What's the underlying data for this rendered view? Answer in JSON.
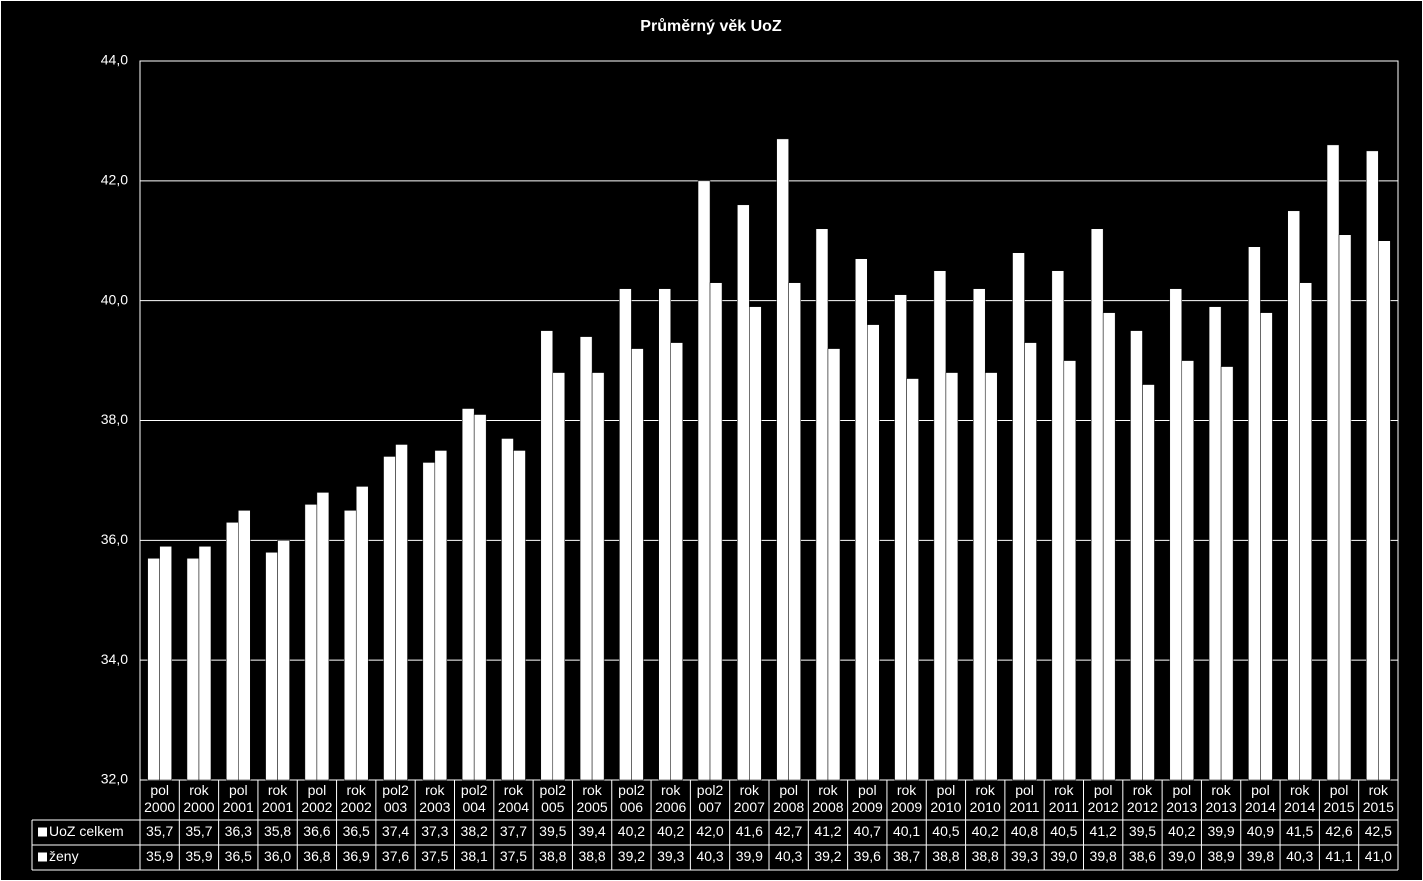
{
  "chart_data": {
    "type": "bar",
    "title": "Průměrný věk UoZ",
    "categories": [
      "pol 2000",
      "rok 2000",
      "pol 2001",
      "rok 2001",
      "pol 2002",
      "rok 2002",
      "pol2003",
      "rok 2003",
      "pol2004",
      "rok 2004",
      "pol2005",
      "rok 2005",
      "pol2006",
      "rok 2006",
      "pol2007",
      "rok 2007",
      "pol 2008",
      "rok 2008",
      "pol 2009",
      "rok 2009",
      "pol 2010",
      "rok 2010",
      "pol 2011",
      "rok 2011",
      "pol 2012",
      "rok 2012",
      "pol 2013",
      "rok 2013",
      "pol 2014",
      "rok 2014",
      "pol 2015",
      "rok 2015"
    ],
    "series": [
      {
        "name": "UoZ celkem",
        "color": "#ffffff",
        "values": [
          35.7,
          35.7,
          36.3,
          35.8,
          36.6,
          36.5,
          37.4,
          37.3,
          38.2,
          37.7,
          39.5,
          39.4,
          40.2,
          40.2,
          42.0,
          41.6,
          42.7,
          41.2,
          40.7,
          40.1,
          40.5,
          40.2,
          40.8,
          40.5,
          41.2,
          39.5,
          40.2,
          39.9,
          40.9,
          41.5,
          42.6,
          42.5
        ],
        "value_labels": [
          "35,7",
          "35,7",
          "36,3",
          "35,8",
          "36,6",
          "36,5",
          "37,4",
          "37,3",
          "38,2",
          "37,7",
          "39,5",
          "39,4",
          "40,2",
          "40,2",
          "42,0",
          "41,6",
          "42,7",
          "41,2",
          "40,7",
          "40,1",
          "40,5",
          "40,2",
          "40,8",
          "40,5",
          "41,2",
          "39,5",
          "40,2",
          "39,9",
          "40,9",
          "41,5",
          "42,6",
          "42,5"
        ]
      },
      {
        "name": "ženy",
        "color": "#ffffff",
        "values": [
          35.9,
          35.9,
          36.5,
          36.0,
          36.8,
          36.9,
          37.6,
          37.5,
          38.1,
          37.5,
          38.8,
          38.8,
          39.2,
          39.3,
          40.3,
          39.9,
          40.3,
          39.2,
          39.6,
          38.7,
          38.8,
          38.8,
          39.3,
          39.0,
          39.8,
          38.6,
          39.0,
          38.9,
          39.8,
          40.3,
          41.1,
          41.0
        ],
        "value_labels": [
          "35,9",
          "35,9",
          "36,5",
          "36,0",
          "36,8",
          "36,9",
          "37,6",
          "37,5",
          "38,1",
          "37,5",
          "38,8",
          "38,8",
          "39,2",
          "39,3",
          "40,3",
          "39,9",
          "40,3",
          "39,2",
          "39,6",
          "38,7",
          "38,8",
          "38,8",
          "39,3",
          "39,0",
          "39,8",
          "38,6",
          "39,0",
          "38,9",
          "39,8",
          "40,3",
          "41,1",
          "41,0"
        ]
      }
    ],
    "ylim": [
      32,
      44
    ],
    "yticks": [
      {
        "value": 32,
        "label": "32,0"
      },
      {
        "value": 34,
        "label": "34,0"
      },
      {
        "value": 36,
        "label": "36,0"
      },
      {
        "value": 38,
        "label": "38,0"
      },
      {
        "value": 40,
        "label": "40,0"
      },
      {
        "value": 42,
        "label": "42,0"
      },
      {
        "value": 44,
        "label": "44,0"
      }
    ],
    "grid": true
  }
}
